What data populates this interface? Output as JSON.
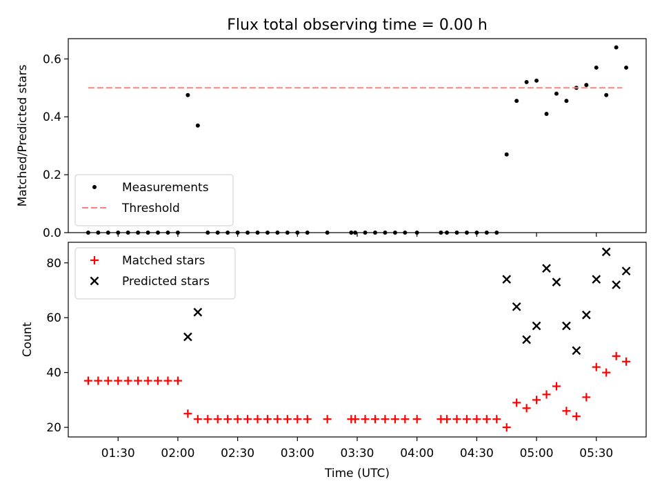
{
  "figure": {
    "title": "Flux total observing time = 0.00 h"
  },
  "chart_data": [
    {
      "type": "scatter",
      "panel": "top",
      "title": "Flux total observing time = 0.00 h",
      "xlabel": "",
      "ylabel": "Matched/Predicted stars",
      "xlim": [
        "01:05",
        "05:55"
      ],
      "ylim": [
        0,
        0.67
      ],
      "yticks": [
        0.0,
        0.2,
        0.4,
        0.6
      ],
      "ytick_labels": [
        "0.0",
        "0.2",
        "0.4",
        "0.6"
      ],
      "grid": false,
      "legend_position": "lower-left",
      "series": [
        {
          "name": "Measurements",
          "kind": "scatter",
          "color": "#000000",
          "marker": "dot",
          "x": [
            "01:15",
            "01:20",
            "01:25",
            "01:30",
            "01:35",
            "01:40",
            "01:45",
            "01:50",
            "01:55",
            "02:00",
            "02:05",
            "02:10",
            "02:15",
            "02:20",
            "02:25",
            "02:30",
            "02:35",
            "02:40",
            "02:45",
            "02:50",
            "02:55",
            "03:00",
            "03:05",
            "03:15",
            "03:27",
            "03:29",
            "03:34",
            "03:39",
            "03:44",
            "03:49",
            "03:54",
            "04:00",
            "04:12",
            "04:15",
            "04:20",
            "04:25",
            "04:30",
            "04:35",
            "04:40",
            "04:45",
            "04:50",
            "04:55",
            "05:00",
            "05:05",
            "05:10",
            "05:15",
            "05:20",
            "05:25",
            "05:30",
            "05:35",
            "05:40",
            "05:45"
          ],
          "y": [
            0,
            0,
            0,
            0,
            0,
            0,
            0,
            0,
            0,
            0,
            0.475,
            0.37,
            0,
            0,
            0,
            0,
            0,
            0,
            0,
            0,
            0,
            0,
            0,
            0,
            0,
            0,
            0,
            0,
            0,
            0,
            0,
            0,
            0,
            0,
            0,
            0,
            0,
            0,
            0,
            0.27,
            0.455,
            0.52,
            0.525,
            0.41,
            0.48,
            0.455,
            0.5,
            0.51,
            0.57,
            0.475,
            0.64,
            0.57
          ]
        },
        {
          "name": "Threshold",
          "kind": "line",
          "color": "#ff7f7f",
          "style": "dashed",
          "x": [
            "01:15",
            "05:43"
          ],
          "y": [
            0.5,
            0.5
          ]
        }
      ]
    },
    {
      "type": "scatter",
      "panel": "bottom",
      "xlabel": "Time (UTC)",
      "ylabel": "Count",
      "xlim": [
        "01:05",
        "05:55"
      ],
      "ylim": [
        16.5,
        87.5
      ],
      "xticks": [
        "01:30",
        "02:00",
        "02:30",
        "03:00",
        "03:30",
        "04:00",
        "04:30",
        "05:00",
        "05:30"
      ],
      "yticks": [
        20,
        40,
        60,
        80
      ],
      "ytick_labels": [
        "20",
        "40",
        "60",
        "80"
      ],
      "grid": false,
      "legend_position": "upper-left",
      "series": [
        {
          "name": "Matched stars",
          "kind": "scatter",
          "color": "#ff0000",
          "marker": "plus",
          "x": [
            "01:15",
            "01:20",
            "01:25",
            "01:30",
            "01:35",
            "01:40",
            "01:45",
            "01:50",
            "01:55",
            "02:00",
            "02:05",
            "02:10",
            "02:15",
            "02:20",
            "02:25",
            "02:30",
            "02:35",
            "02:40",
            "02:45",
            "02:50",
            "02:55",
            "03:00",
            "03:05",
            "03:15",
            "03:27",
            "03:29",
            "03:34",
            "03:39",
            "03:44",
            "03:49",
            "03:54",
            "04:00",
            "04:12",
            "04:15",
            "04:20",
            "04:25",
            "04:30",
            "04:35",
            "04:40",
            "04:45",
            "04:50",
            "04:55",
            "05:00",
            "05:05",
            "05:10",
            "05:15",
            "05:20",
            "05:25",
            "05:30",
            "05:35",
            "05:40",
            "05:45"
          ],
          "y": [
            37,
            37,
            37,
            37,
            37,
            37,
            37,
            37,
            37,
            37,
            25,
            23,
            23,
            23,
            23,
            23,
            23,
            23,
            23,
            23,
            23,
            23,
            23,
            23,
            23,
            23,
            23,
            23,
            23,
            23,
            23,
            23,
            23,
            23,
            23,
            23,
            23,
            23,
            23,
            20,
            29,
            27,
            30,
            32,
            35,
            26,
            24,
            31,
            42,
            40,
            46,
            44
          ]
        },
        {
          "name": "Predicted stars",
          "kind": "scatter",
          "color": "#000000",
          "marker": "x",
          "x": [
            "02:05",
            "02:10",
            "04:45",
            "04:50",
            "04:55",
            "05:00",
            "05:05",
            "05:10",
            "05:15",
            "05:20",
            "05:25",
            "05:30",
            "05:35",
            "05:40",
            "05:45"
          ],
          "y": [
            53,
            62,
            74,
            64,
            52,
            57,
            78,
            73,
            57,
            48,
            61,
            74,
            84,
            72,
            77
          ]
        }
      ]
    }
  ]
}
